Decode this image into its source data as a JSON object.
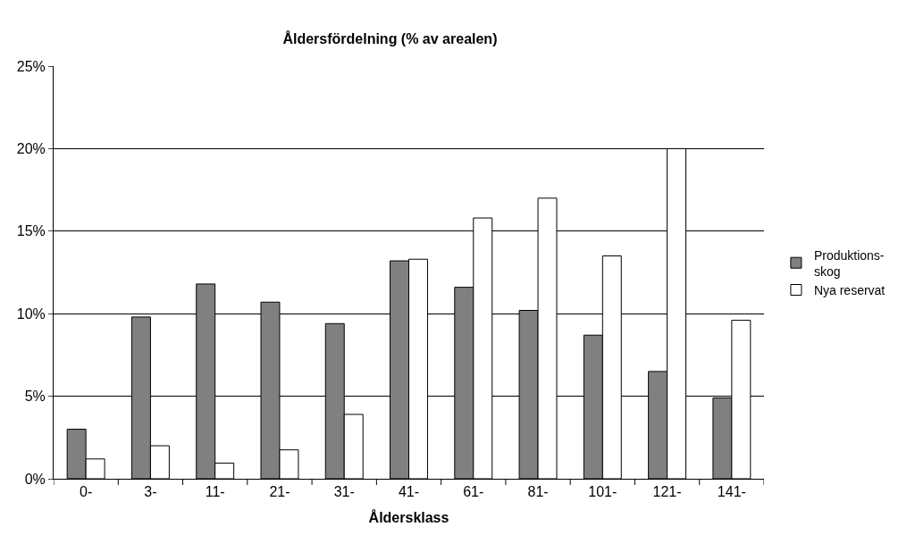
{
  "chart_data": {
    "type": "bar",
    "title": "Åldersfördelning (% av arealen)",
    "xlabel": "Åldersklass",
    "categories": [
      "0-",
      "3-",
      "11-",
      "21-",
      "31-",
      "41-",
      "61-",
      "81-",
      "101-",
      "121-",
      "141-"
    ],
    "series": [
      {
        "name": "Produktions-\nskog",
        "color": "#808080",
        "values": [
          3.0,
          9.8,
          11.8,
          10.7,
          9.4,
          13.2,
          11.6,
          10.2,
          8.7,
          6.5,
          4.9
        ]
      },
      {
        "name": "Nya reservat",
        "color": "#ffffff",
        "values": [
          1.2,
          2.0,
          0.95,
          1.75,
          3.9,
          13.3,
          15.8,
          17.0,
          13.5,
          20.0,
          9.6
        ]
      }
    ],
    "ylim": [
      0,
      25
    ],
    "yticks": [
      {
        "value": 0,
        "label": "0%"
      },
      {
        "value": 5,
        "label": "5%"
      },
      {
        "value": 10,
        "label": "10%"
      },
      {
        "value": 15,
        "label": "15%"
      },
      {
        "value": 20,
        "label": "20%"
      },
      {
        "value": 25,
        "label": "25%"
      }
    ],
    "grid": "y",
    "legend": "right"
  }
}
